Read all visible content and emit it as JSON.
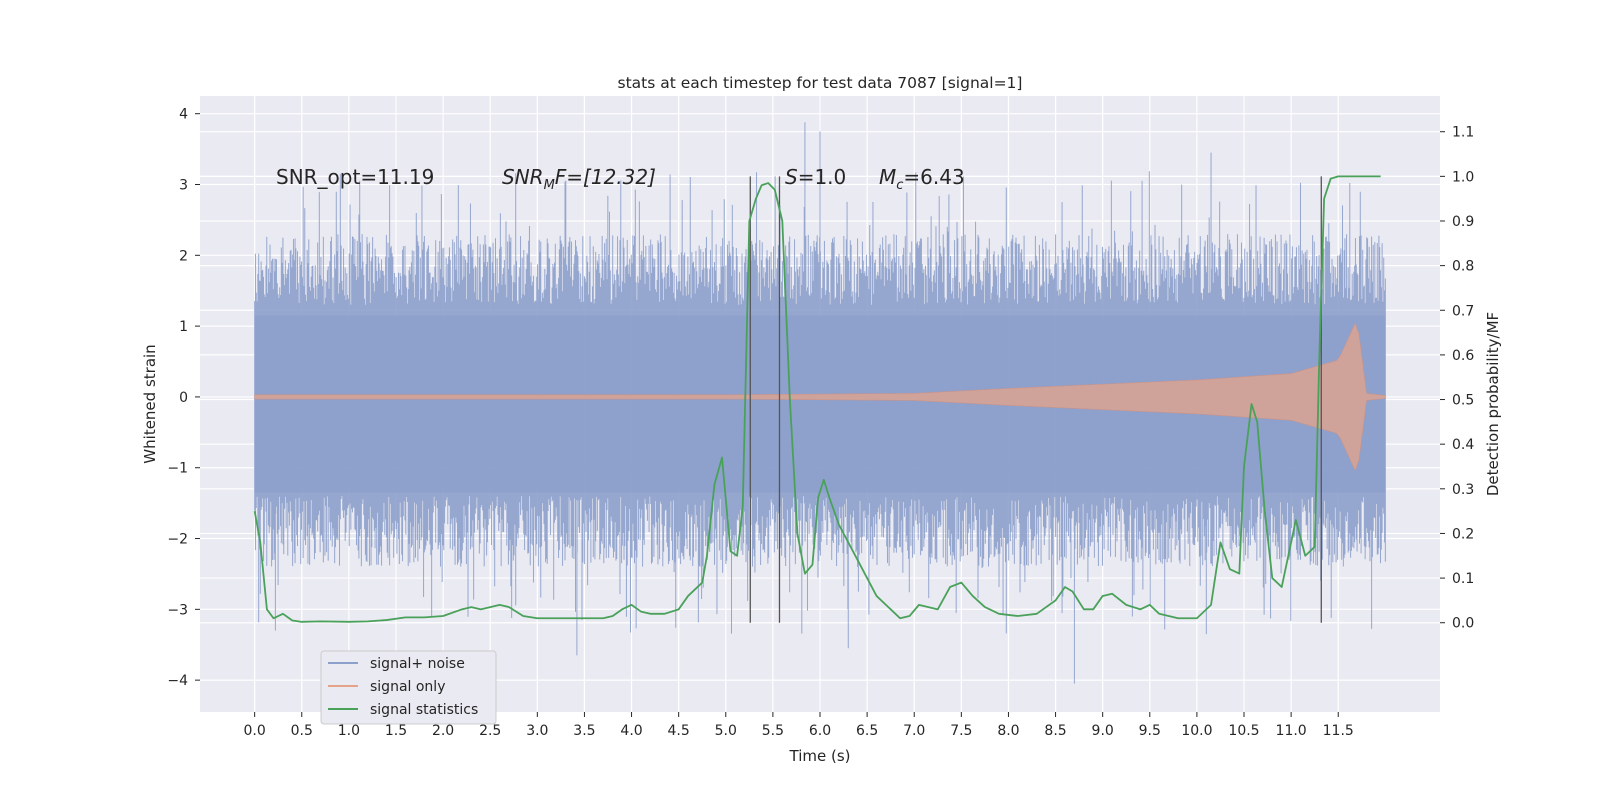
{
  "chart_data": {
    "type": "line",
    "title": "stats at each timestep for test data 7087 [signal=1]",
    "xlabel": "Time (s)",
    "ylabel_left": "Whitened strain",
    "ylabel_right": "Detection probability/MF",
    "xlim": [
      -0.58,
      12.58
    ],
    "ylim_left": [
      -4.45,
      4.25
    ],
    "ylim_right": [
      -0.2,
      1.18
    ],
    "x_ticks": [
      "0.0",
      "0.5",
      "1.0",
      "1.5",
      "2.0",
      "2.5",
      "3.0",
      "3.5",
      "4.0",
      "4.5",
      "5.0",
      "5.5",
      "6.0",
      "6.5",
      "7.0",
      "7.5",
      "8.0",
      "8.5",
      "9.0",
      "9.5",
      "10.0",
      "10.5",
      "11.0",
      "11.5"
    ],
    "y_ticks_left": [
      "4",
      "3",
      "2",
      "1",
      "0",
      "−1",
      "−2",
      "−3",
      "−4"
    ],
    "y_ticks_right": [
      "1.1",
      "1.0",
      "0.9",
      "0.8",
      "0.7",
      "0.6",
      "0.5",
      "0.4",
      "0.3",
      "0.2",
      "0.1",
      "0.0"
    ],
    "annotations": {
      "snr_opt": "SNR_opt=11.19",
      "snr_mf_main": "SNR",
      "snr_mf_sub": "M",
      "snr_mf_rest": "F=[12.32]",
      "s_main": "S",
      "s_rest": "=1.0",
      "mc_main": "M",
      "mc_sub": "c",
      "mc_rest": "=6.43"
    },
    "legend": {
      "location": "lower-left",
      "entries": [
        {
          "label": "signal+ noise",
          "color": "#8da0cb"
        },
        {
          "label": "signal only",
          "color": "#e5a48a"
        },
        {
          "label": "signal statistics",
          "color": "#4aa15a"
        }
      ]
    },
    "vlines_x": [
      5.26,
      5.57,
      11.32
    ],
    "noise_envelope": {
      "x_range": [
        0.0,
        12.0
      ],
      "core_band": [
        -1.35,
        1.15
      ],
      "typical_peaks": [
        -2.4,
        2.3
      ],
      "extreme_peaks": [
        -4.05,
        3.88
      ]
    },
    "signal_only": {
      "x_range": [
        0.0,
        12.0
      ],
      "amplitude_points": [
        [
          0.0,
          0.03
        ],
        [
          5.0,
          0.03
        ],
        [
          7.0,
          0.05
        ],
        [
          8.0,
          0.12
        ],
        [
          9.0,
          0.18
        ],
        [
          10.0,
          0.24
        ],
        [
          11.0,
          0.33
        ],
        [
          11.5,
          0.52
        ],
        [
          11.7,
          1.1
        ],
        [
          11.8,
          0.05
        ],
        [
          12.0,
          0.02
        ]
      ]
    },
    "series": [
      {
        "name": "signal statistics",
        "x": [
          0.0,
          0.06,
          0.13,
          0.2,
          0.3,
          0.4,
          0.5,
          0.7,
          1.0,
          1.2,
          1.4,
          1.6,
          1.8,
          2.0,
          2.2,
          2.3,
          2.4,
          2.5,
          2.6,
          2.7,
          2.85,
          3.0,
          3.2,
          3.5,
          3.7,
          3.8,
          3.9,
          4.0,
          4.1,
          4.2,
          4.35,
          4.5,
          4.6,
          4.75,
          4.8,
          4.88,
          4.96,
          5.05,
          5.12,
          5.18,
          5.25,
          5.32,
          5.38,
          5.45,
          5.52,
          5.6,
          5.68,
          5.76,
          5.84,
          5.92,
          5.98,
          6.04,
          6.1,
          6.2,
          6.4,
          6.6,
          6.75,
          6.85,
          6.95,
          7.05,
          7.15,
          7.25,
          7.38,
          7.5,
          7.62,
          7.75,
          7.9,
          8.1,
          8.3,
          8.5,
          8.6,
          8.68,
          8.8,
          8.9,
          9.0,
          9.1,
          9.25,
          9.4,
          9.5,
          9.6,
          9.7,
          9.8,
          10.0,
          10.15,
          10.25,
          10.35,
          10.45,
          10.5,
          10.58,
          10.64,
          10.72,
          10.8,
          10.9,
          11.05,
          11.15,
          11.25,
          11.3,
          11.35,
          11.42,
          11.5,
          11.6,
          11.95
        ],
        "values": [
          0.25,
          0.18,
          0.03,
          0.01,
          0.02,
          0.005,
          0.002,
          0.003,
          0.002,
          0.003,
          0.006,
          0.012,
          0.012,
          0.015,
          0.03,
          0.035,
          0.03,
          0.035,
          0.04,
          0.035,
          0.015,
          0.01,
          0.01,
          0.01,
          0.01,
          0.015,
          0.03,
          0.04,
          0.025,
          0.02,
          0.02,
          0.03,
          0.06,
          0.09,
          0.15,
          0.31,
          0.37,
          0.16,
          0.15,
          0.26,
          0.9,
          0.95,
          0.98,
          0.985,
          0.97,
          0.9,
          0.5,
          0.2,
          0.11,
          0.13,
          0.28,
          0.32,
          0.28,
          0.22,
          0.14,
          0.06,
          0.03,
          0.01,
          0.015,
          0.04,
          0.035,
          0.03,
          0.08,
          0.09,
          0.06,
          0.035,
          0.02,
          0.015,
          0.02,
          0.05,
          0.08,
          0.07,
          0.03,
          0.03,
          0.06,
          0.065,
          0.04,
          0.03,
          0.04,
          0.02,
          0.015,
          0.01,
          0.01,
          0.04,
          0.18,
          0.12,
          0.11,
          0.35,
          0.49,
          0.45,
          0.25,
          0.1,
          0.08,
          0.23,
          0.15,
          0.17,
          0.6,
          0.95,
          0.995,
          1.0,
          1.0,
          1.0
        ]
      }
    ]
  }
}
